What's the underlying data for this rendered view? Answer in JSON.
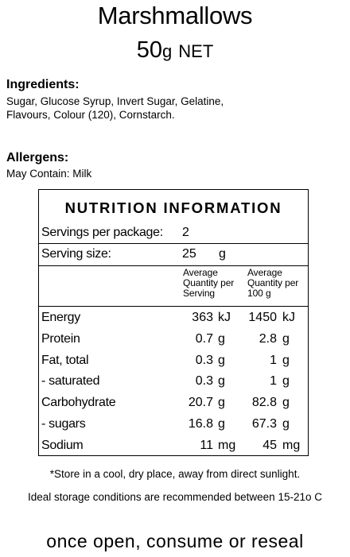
{
  "header": {
    "title": "Marshmallows",
    "net_value": "50",
    "net_unit_small": "g",
    "net_label": "NET"
  },
  "ingredients": {
    "heading": "Ingredients:",
    "line1": "Sugar, Glucose Syrup, Invert Sugar, Gelatine,",
    "line2": "Flavours, Colour (120), Cornstarch."
  },
  "allergens": {
    "heading": "Allergens:",
    "text": "May Contain: Milk"
  },
  "nutrition": {
    "title": "NUTRITION INFORMATION",
    "servings_label": "Servings per package:",
    "servings_value": "2",
    "serving_size_label": "Serving size:",
    "serving_size_value": "25",
    "serving_size_unit": "g",
    "col1_header": [
      "Average",
      "Quantity per",
      "Serving"
    ],
    "col2_header": [
      "Average",
      "Quantity per",
      "100 g"
    ],
    "rows": [
      {
        "name": "Energy",
        "serving": "363",
        "serving_unit": "kJ",
        "per100": "1450",
        "per100_unit": "kJ"
      },
      {
        "name": "Protein",
        "serving": "0.7",
        "serving_unit": "g",
        "per100": "2.8",
        "per100_unit": "g"
      },
      {
        "name": "Fat, total",
        "serving": "0.3",
        "serving_unit": "g",
        "per100": "1",
        "per100_unit": "g"
      },
      {
        "name": "- saturated",
        "serving": "0.3",
        "serving_unit": "g",
        "per100": "1",
        "per100_unit": "g"
      },
      {
        "name": "Carbohydrate",
        "serving": "20.7",
        "serving_unit": "g",
        "per100": "82.8",
        "per100_unit": "g"
      },
      {
        "name": "- sugars",
        "serving": "16.8",
        "serving_unit": "g",
        "per100": "67.3",
        "per100_unit": "g"
      },
      {
        "name": "Sodium",
        "serving": "11",
        "serving_unit": "mg",
        "per100": "45",
        "per100_unit": "mg"
      }
    ]
  },
  "footer": {
    "store_note": "*Store in a cool, dry place, away from direct sunlight.",
    "storage_conditions": "Ideal storage conditions are recommended between 15-21o C",
    "consume_note": "once open, consume or reseal"
  }
}
